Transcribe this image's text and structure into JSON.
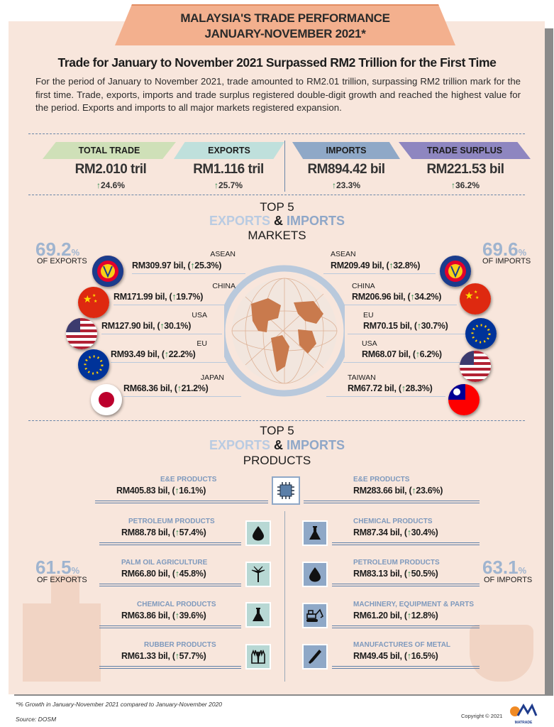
{
  "banner": {
    "line1": "MALAYSIA'S TRADE PERFORMANCE",
    "line2": "JANUARY-NOVEMBER 2021*"
  },
  "heading": "Trade for January to November 2021 Surpassed RM2 Trillion for the First Time",
  "intro": "For the period of January to November 2021, trade amounted to RM2.01 trillion, surpassing RM2 trillion mark for the first time. Trade, exports, imports and trade surplus registered double-digit growth and reached the highest value for the period. Exports and imports to all major markets registered expansion.",
  "kpis": [
    {
      "label": "TOTAL TRADE",
      "value": "RM2.010 tril",
      "growth": "24.6%",
      "color": "#cfe0b8"
    },
    {
      "label": "EXPORTS",
      "value": "RM1.116 tril",
      "growth": "25.7%",
      "color": "#bfe0dc"
    },
    {
      "label": "IMPORTS",
      "value": "RM894.42 bil",
      "growth": "23.3%",
      "color": "#8fa8c7"
    },
    {
      "label": "TRADE SURPLUS",
      "value": "RM221.53 bil",
      "growth": "36.2%",
      "color": "#8e86c0"
    }
  ],
  "arrow": "↑",
  "markets_section": {
    "top": "TOP 5",
    "exports_word": "EXPORTS",
    "amp": "&",
    "imports_word": "IMPORTS",
    "bottom": "MARKETS"
  },
  "products_section": {
    "top": "TOP 5",
    "exports_word": "EXPORTS",
    "amp": "&",
    "imports_word": "IMPORTS",
    "bottom": "PRODUCTS"
  },
  "markets": {
    "export_share": {
      "pct": "69.2",
      "unit": "%",
      "label": "OF EXPORTS"
    },
    "import_share": {
      "pct": "69.6",
      "unit": "%",
      "label": "OF IMPORTS"
    },
    "exports": [
      {
        "name": "ASEAN",
        "value": "RM309.97 bil, (↑25.3%)",
        "flag": "asean-flag-icon"
      },
      {
        "name": "CHINA",
        "value": "RM171.99 bil, (↑19.7%)",
        "flag": "china-flag-icon"
      },
      {
        "name": "USA",
        "value": "RM127.90 bil, (↑30.1%)",
        "flag": "usa-flag-icon"
      },
      {
        "name": "EU",
        "value": "RM93.49 bil, (↑22.2%)",
        "flag": "eu-flag-icon"
      },
      {
        "name": "JAPAN",
        "value": "RM68.36 bil, (↑21.2%)",
        "flag": "japan-flag-icon"
      }
    ],
    "imports": [
      {
        "name": "ASEAN",
        "value": "RM209.49 bil, (↑32.8%)",
        "flag": "asean-flag-icon"
      },
      {
        "name": "CHINA",
        "value": "RM206.96 bil, (↑34.2%)",
        "flag": "china-flag-icon"
      },
      {
        "name": "EU",
        "value": "RM70.15 bil, (↑30.7%)",
        "flag": "eu-flag-icon"
      },
      {
        "name": "USA",
        "value": "RM68.07 bil, (↑6.2%)",
        "flag": "usa-flag-icon"
      },
      {
        "name": "TAIWAN",
        "value": "RM67.72 bil, (↑28.3%)",
        "flag": "taiwan-flag-icon"
      }
    ]
  },
  "products": {
    "export_share": {
      "pct": "61.5",
      "unit": "%",
      "label": "OF EXPORTS"
    },
    "import_share": {
      "pct": "63.1",
      "unit": "%",
      "label": "OF IMPORTS"
    },
    "exports": [
      {
        "name": "E&E PRODUCTS",
        "value": "RM405.83 bil, (↑16.1%)",
        "icon": "chip-icon"
      },
      {
        "name": "PETROLEUM PRODUCTS",
        "value": "RM88.78 bil, (↑57.4%)",
        "icon": "oil-drop-icon"
      },
      {
        "name": "PALM OIL AGRICULTURE",
        "value": "RM66.80 bil, (↑45.8%)",
        "icon": "palm-tree-icon"
      },
      {
        "name": "CHEMICAL PRODUCTS",
        "value": "RM63.86 bil, (↑39.6%)",
        "icon": "flask-icon"
      },
      {
        "name": "RUBBER PRODUCTS",
        "value": "RM61.33 bil, (↑57.7%)",
        "icon": "gloves-icon"
      }
    ],
    "imports": [
      {
        "name": "E&E PRODUCTS",
        "value": "RM283.66 bil, (↑23.6%)",
        "icon": "chip-icon"
      },
      {
        "name": "CHEMICAL PRODUCTS",
        "value": "RM87.34 bil, (↑30.4%)",
        "icon": "flask-icon"
      },
      {
        "name": "PETROLEUM PRODUCTS",
        "value": "RM83.13 bil, (↑50.5%)",
        "icon": "oil-drop-icon"
      },
      {
        "name": "MACHINERY, EQUIPMENT & PARTS",
        "value": "RM61.20 bil, (↑12.8%)",
        "icon": "excavator-icon"
      },
      {
        "name": "MANUFACTURES OF METAL",
        "value": "RM49.45 bil, (↑16.5%)",
        "icon": "metal-icon"
      }
    ]
  },
  "footnote": "*% Growth in January-November 2021 compared to January-November 2020",
  "source": "Source: DOSM",
  "copyright": "Copyright © 2021",
  "logo_text": "MATRADE"
}
